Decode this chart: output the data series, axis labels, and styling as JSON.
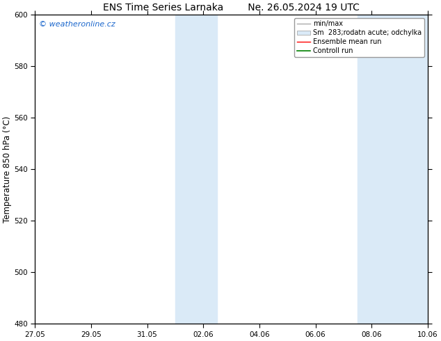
{
  "title": "ENS Time Series Larnaka",
  "title2": "Ne. 26.05.2024 19 UTC",
  "ylabel": "Temperature 850 hPa (°C)",
  "ylim": [
    480,
    600
  ],
  "yticks": [
    480,
    500,
    520,
    540,
    560,
    580,
    600
  ],
  "xtick_labels": [
    "27.05",
    "29.05",
    "31.05",
    "02.06",
    "04.06",
    "06.06",
    "08.06",
    "10.06"
  ],
  "xtick_positions": [
    0,
    2,
    4,
    6,
    8,
    10,
    12,
    14
  ],
  "shaded_bands": [
    {
      "x_start": 5.0,
      "x_end": 6.5,
      "color": "#daeaf7"
    },
    {
      "x_start": 11.5,
      "x_end": 14.0,
      "color": "#daeaf7"
    }
  ],
  "watermark_text": "© weatheronline.cz",
  "watermark_color": "#1a66cc",
  "legend_entries": [
    {
      "label": "min/max",
      "color": "#aaaaaa",
      "linestyle": "-"
    },
    {
      "label": "Sm  283;rodatn acute; odchylka",
      "patch": true,
      "facecolor": "#daeaf7",
      "edgecolor": "#aaaaaa"
    },
    {
      "label": "Ensemble mean run",
      "color": "red",
      "linestyle": "-"
    },
    {
      "label": "Controll run",
      "color": "green",
      "linestyle": "-"
    }
  ],
  "bg_color": "#ffffff",
  "title_fontsize": 10,
  "tick_fontsize": 7.5,
  "label_fontsize": 8.5,
  "legend_fontsize": 7,
  "watermark_fontsize": 8
}
